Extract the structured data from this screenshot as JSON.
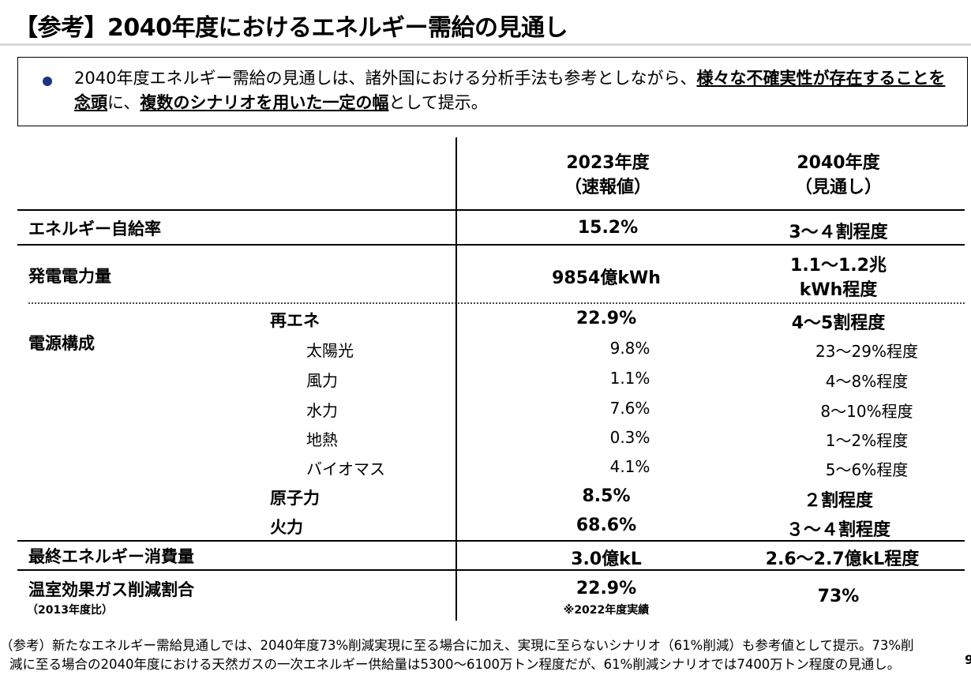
{
  "title": "【参考】2040年度におけるエネルギー需給の見通し",
  "note": {
    "part1": "2040年度エネルギー需給の見通しは、諸外国における分析手法も参考としながら、",
    "emphasis1": "様々な不確実性が存在することを念頭",
    "part2": "に、",
    "emphasis2": "複数のシナリオを用いた一定の幅",
    "part3": "として提示。"
  },
  "columns": {
    "col2023": [
      "2023年度",
      "（速報値）"
    ],
    "col2040": [
      "2040年度",
      "（見通し）"
    ]
  },
  "rows": {
    "self_sufficiency": {
      "label": "エネルギー自給率",
      "v2023": "15.2%",
      "v2040": "3～４割程度"
    },
    "generation": {
      "label": "発電電力量",
      "v2023": "9854億kWh",
      "v2040_line1": "1.1～1.2兆",
      "v2040_line2": "kWh程度"
    },
    "power_mix": {
      "label": "電源構成",
      "renewables": {
        "label": "再エネ",
        "v2023": "22.9%",
        "v2040": "4～5割程度"
      },
      "items": [
        {
          "label": "太陽光",
          "v2023": "9.8%",
          "v2040": "23～29%程度"
        },
        {
          "label": "風力",
          "v2023": "1.1%",
          "v2040": "4～8%程度"
        },
        {
          "label": "水力",
          "v2023": "7.6%",
          "v2040": "8～10%程度"
        },
        {
          "label": "地熱",
          "v2023": "0.3%",
          "v2040": "1～2%程度"
        },
        {
          "label": "バイオマス",
          "v2023": "4.1%",
          "v2040": "5～6%程度"
        }
      ],
      "nuclear": {
        "label": "原子力",
        "v2023": "8.5%",
        "v2040": "２割程度"
      },
      "thermal": {
        "label": "火力",
        "v2023": "68.6%",
        "v2040": "３～４割程度"
      }
    },
    "final_consumption": {
      "label": "最終エネルギー消費量",
      "v2023": "3.0億kL",
      "v2040": "2.6～2.7億kL程度"
    },
    "ghg": {
      "label": "温室効果ガス削減割合",
      "sublabel": "（2013年度比）",
      "v2023": "22.9%",
      "v2023_note": "※2022年度実績",
      "v2040": "73%"
    }
  },
  "footnote": {
    "line1": "（参考）新たなエネルギー需給見通しでは、2040年度73%削減実現に至る場合に加え、実現に至らないシナリオ（61%削減）も参考値として提示。73%削",
    "line2": "減に至る場合の2040年度における天然ガスの一次エネルギー供給量は5300～6100万トン程度だが、61%削減シナリオでは7400万トン程度の見通し。",
    "page": "9"
  }
}
